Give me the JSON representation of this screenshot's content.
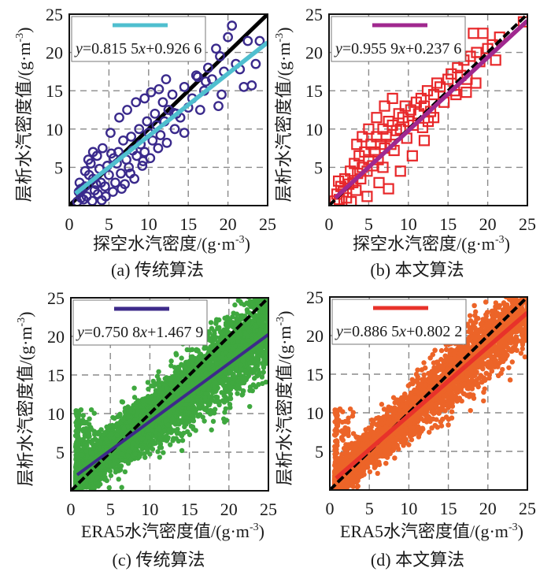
{
  "chart_data": [
    {
      "id": "a",
      "type": "scatter",
      "caption": "(a) 传统算法",
      "xlabel": "探空水汽密度/(g·m",
      "ylabel": "层析水汽密度值/(g·m",
      "unit_exp": "-3",
      "xlim": [
        0,
        25
      ],
      "ylim": [
        0,
        25
      ],
      "xticks": [
        "0",
        "5",
        "10",
        "15",
        "20",
        "25"
      ],
      "yticks": [
        "5",
        "10",
        "15",
        "20",
        "25"
      ],
      "grid": true,
      "legend": "top-left",
      "legend_text": [
        "y",
        "=0.815 5",
        "x",
        "+0.926 6"
      ],
      "fit": {
        "slope": 0.8155,
        "intercept": 0.9266,
        "color": "#4fbfcf"
      },
      "reference": {
        "slope": 1,
        "intercept": 0,
        "color": "#000000",
        "style": "solid"
      },
      "marker": {
        "shape": "circle-open",
        "color": "#3a2a8c"
      },
      "points": [
        [
          1,
          0.5
        ],
        [
          1.2,
          1.8
        ],
        [
          1.5,
          1
        ],
        [
          1.3,
          3
        ],
        [
          2,
          2.5
        ],
        [
          2.2,
          1.2
        ],
        [
          2.5,
          4
        ],
        [
          1.8,
          0.8
        ],
        [
          3,
          3.5
        ],
        [
          3.2,
          2
        ],
        [
          2.7,
          5.5
        ],
        [
          3.5,
          6.5
        ],
        [
          3.8,
          4.8
        ],
        [
          4,
          3
        ],
        [
          4.2,
          7.5
        ],
        [
          3.6,
          1.5
        ],
        [
          4.5,
          2.5
        ],
        [
          4.8,
          5.2
        ],
        [
          5,
          4
        ],
        [
          5.3,
          6.8
        ],
        [
          5.5,
          1.8
        ],
        [
          5.8,
          3
        ],
        [
          6,
          5.5
        ],
        [
          6.2,
          7
        ],
        [
          6.5,
          4.2
        ],
        [
          6.8,
          8.5
        ],
        [
          7,
          2.8
        ],
        [
          7.2,
          6
        ],
        [
          7.5,
          5
        ],
        [
          7.8,
          9
        ],
        [
          8,
          7.2
        ],
        [
          8.2,
          3.5
        ],
        [
          8.5,
          6.5
        ],
        [
          8.8,
          10
        ],
        [
          9,
          8
        ],
        [
          9.2,
          5.2
        ],
        [
          9.5,
          7
        ],
        [
          9.8,
          11
        ],
        [
          10,
          9.5
        ],
        [
          10.2,
          6.2
        ],
        [
          10.5,
          8.5
        ],
        [
          10.8,
          12
        ],
        [
          11,
          10.5
        ],
        [
          11.2,
          7.5
        ],
        [
          11.5,
          9.2
        ],
        [
          11.8,
          13.5
        ],
        [
          12,
          11
        ],
        [
          12.3,
          8.2
        ],
        [
          12.5,
          12.5
        ],
        [
          13,
          14.5
        ],
        [
          13.3,
          10
        ],
        [
          13.5,
          12
        ],
        [
          14,
          11.5
        ],
        [
          14.5,
          15.5
        ],
        [
          15,
          12.8
        ],
        [
          15.5,
          14
        ],
        [
          16,
          17
        ],
        [
          16.5,
          12.5
        ],
        [
          17,
          15
        ],
        [
          17.5,
          18
        ],
        [
          18,
          16.5
        ],
        [
          18.5,
          20.5
        ],
        [
          18.8,
          13
        ],
        [
          19,
          19.5
        ],
        [
          19.5,
          17.5
        ],
        [
          20,
          22
        ],
        [
          20.5,
          23.5
        ],
        [
          21,
          18.5
        ],
        [
          21.5,
          17.8
        ],
        [
          22,
          15.5
        ],
        [
          22.5,
          21.5
        ],
        [
          23,
          15.7
        ],
        [
          23.5,
          18.5
        ],
        [
          24,
          21.5
        ],
        [
          3,
          7
        ],
        [
          2.4,
          6
        ],
        [
          5.2,
          9.5
        ],
        [
          6.3,
          11.5
        ],
        [
          7.3,
          12.5
        ],
        [
          8.4,
          13.5
        ],
        [
          9.5,
          14
        ],
        [
          10.3,
          14.8
        ],
        [
          11.3,
          15.2
        ],
        [
          12.2,
          16.5
        ],
        [
          14.5,
          9.5
        ],
        [
          13.2,
          12.1
        ],
        [
          16.2,
          16.8
        ],
        [
          17.2,
          16.2
        ],
        [
          19.2,
          14.5
        ],
        [
          2,
          4.5
        ],
        [
          1.5,
          2.2
        ],
        [
          3.4,
          2.8
        ],
        [
          4.6,
          1.2
        ],
        [
          6.6,
          2.2
        ],
        [
          5.6,
          6.2
        ],
        [
          7.7,
          4.2
        ],
        [
          9.3,
          5.8
        ],
        [
          2.9,
          0.6
        ],
        [
          4.1,
          0.7
        ]
      ]
    },
    {
      "id": "b",
      "type": "scatter",
      "caption": "(b) 本文算法",
      "xlabel": "探空水汽密度/(g·m",
      "ylabel": "层析水汽密度值/(g·m",
      "unit_exp": "-3",
      "xlim": [
        0,
        25
      ],
      "ylim": [
        0,
        25
      ],
      "xticks": [
        "0",
        "5",
        "10",
        "15",
        "20",
        "25"
      ],
      "yticks": [
        "5",
        "10",
        "15",
        "20",
        "25"
      ],
      "grid": true,
      "legend": "top-left",
      "legend_text": [
        "y",
        "=0.955 9",
        "x",
        "+0.237 6"
      ],
      "fit": {
        "slope": 0.9559,
        "intercept": 0.2376,
        "color": "#a0288f"
      },
      "reference": {
        "slope": 1,
        "intercept": 0,
        "color": "#000000",
        "style": "dashed"
      },
      "marker": {
        "shape": "square-open",
        "color": "#e8282a"
      },
      "points": [
        [
          0.7,
          0.6
        ],
        [
          1,
          1.5
        ],
        [
          1.3,
          0.8
        ],
        [
          1.5,
          2.5
        ],
        [
          1.8,
          1.8
        ],
        [
          2,
          3.5
        ],
        [
          2.2,
          1
        ],
        [
          2.5,
          2.8
        ],
        [
          2.7,
          4.5
        ],
        [
          3,
          3
        ],
        [
          3.2,
          5.5
        ],
        [
          3.4,
          2
        ],
        [
          3.6,
          4.2
        ],
        [
          3.8,
          6.5
        ],
        [
          4,
          3.5
        ],
        [
          4.2,
          5
        ],
        [
          4.5,
          7
        ],
        [
          4.8,
          4.5
        ],
        [
          5,
          6
        ],
        [
          5.3,
          8
        ],
        [
          5.5,
          5.2
        ],
        [
          5.8,
          7
        ],
        [
          6,
          9
        ],
        [
          6.2,
          6
        ],
        [
          6.5,
          8
        ],
        [
          6.8,
          10
        ],
        [
          7,
          7.5
        ],
        [
          7.2,
          9
        ],
        [
          7.5,
          11
        ],
        [
          7.8,
          8
        ],
        [
          8,
          10.5
        ],
        [
          8.2,
          7.2
        ],
        [
          8.5,
          9.8
        ],
        [
          8.8,
          12
        ],
        [
          9,
          10
        ],
        [
          9.3,
          11.5
        ],
        [
          9.6,
          13
        ],
        [
          10,
          11
        ],
        [
          10.3,
          12.5
        ],
        [
          10.6,
          10.5
        ],
        [
          11,
          13.5
        ],
        [
          11.3,
          12
        ],
        [
          11.6,
          14
        ],
        [
          12,
          13
        ],
        [
          12.4,
          15
        ],
        [
          12.8,
          12.3
        ],
        [
          13.2,
          14.5
        ],
        [
          13.6,
          16
        ],
        [
          14,
          15.5
        ],
        [
          14.5,
          13.5
        ],
        [
          15,
          16.5
        ],
        [
          15.4,
          17.2
        ],
        [
          15.8,
          15
        ],
        [
          16.2,
          18
        ],
        [
          16.6,
          17
        ],
        [
          17,
          19
        ],
        [
          17.4,
          16.5
        ],
        [
          17.8,
          19.5
        ],
        [
          18.2,
          22.5
        ],
        [
          18.6,
          20
        ],
        [
          19,
          18.8
        ],
        [
          19.4,
          22.5
        ],
        [
          20,
          20.5
        ],
        [
          20.6,
          21
        ],
        [
          21,
          19
        ],
        [
          21.5,
          22
        ],
        [
          24.5,
          24
        ],
        [
          6.3,
          3
        ],
        [
          7.5,
          2.2
        ],
        [
          9,
          4.5
        ],
        [
          10.5,
          6.5
        ],
        [
          12,
          8.5
        ],
        [
          12.5,
          11
        ],
        [
          11.8,
          10.2
        ],
        [
          3.5,
          8
        ],
        [
          4.2,
          9
        ],
        [
          5,
          10
        ],
        [
          6,
          11.5
        ],
        [
          7,
          13
        ],
        [
          8,
          14
        ],
        [
          4.8,
          1.2
        ],
        [
          2.8,
          0.5
        ],
        [
          1.2,
          3.2
        ],
        [
          6.8,
          5
        ],
        [
          9.8,
          8.8
        ],
        [
          13.2,
          11.5
        ],
        [
          16,
          14.5
        ],
        [
          17.3,
          14.8
        ],
        [
          18.5,
          16
        ]
      ]
    },
    {
      "id": "c",
      "type": "scatter",
      "caption": "(c) 传统算法",
      "xlabel": "ERA5水汽密度值/(g·m",
      "ylabel": "层析水汽密度值/(g·m",
      "unit_exp": "-3",
      "xlim": [
        0,
        25
      ],
      "ylim": [
        0,
        25
      ],
      "xticks": [
        "0",
        "5",
        "10",
        "15",
        "20",
        "25"
      ],
      "yticks": [
        "5",
        "10",
        "15",
        "20",
        "25"
      ],
      "grid": true,
      "legend": "top-left",
      "legend_text": [
        "y",
        "=0.750 8",
        "x",
        "+1.467 9"
      ],
      "fit": {
        "slope": 0.7508,
        "intercept": 1.4679,
        "color": "#3d2a8a"
      },
      "reference": {
        "slope": 1,
        "intercept": 0,
        "color": "#000000",
        "style": "dashed"
      },
      "marker": {
        "shape": "dot-filled",
        "color": "#3fa83f"
      },
      "density": {
        "samples": 4500,
        "center_slope": 0.8,
        "center_intercept": 1.2,
        "spread": 2.6
      }
    },
    {
      "id": "d",
      "type": "scatter",
      "caption": "(d) 本文算法",
      "xlabel": "ERA5水汽密度值/(g·m",
      "ylabel": "层析水汽密度值/(g·m",
      "unit_exp": "-3",
      "xlim": [
        0,
        25
      ],
      "ylim": [
        0,
        25
      ],
      "xticks": [
        "0",
        "5",
        "10",
        "15",
        "20",
        "25"
      ],
      "yticks": [
        "5",
        "10",
        "15",
        "20",
        "25"
      ],
      "grid": true,
      "legend": "top-left",
      "legend_text": [
        "y",
        "=0.886 5",
        "x",
        "+0.802 2"
      ],
      "fit": {
        "slope": 0.8865,
        "intercept": 0.8022,
        "color": "#e8322a"
      },
      "reference": {
        "slope": 1,
        "intercept": 0,
        "color": "#000000",
        "style": "dashed"
      },
      "marker": {
        "shape": "dot-filled",
        "color": "#ec6428"
      },
      "density": {
        "samples": 4500,
        "center_slope": 0.92,
        "center_intercept": 0.6,
        "spread": 2.3
      }
    }
  ]
}
